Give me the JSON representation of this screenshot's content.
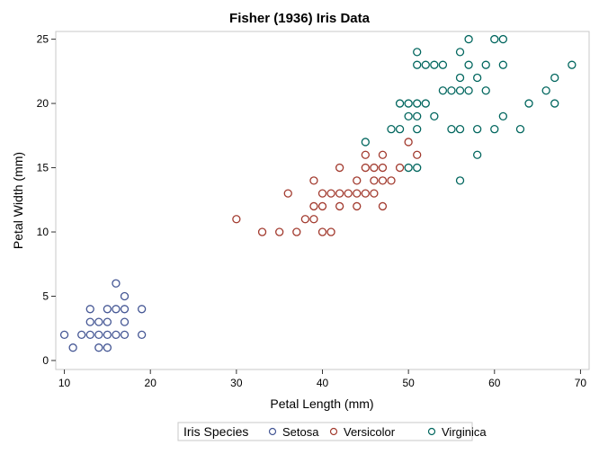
{
  "chart_data": {
    "type": "scatter",
    "title": "Fisher (1936) Iris Data",
    "xlabel": "Petal Length (mm)",
    "ylabel": "Petal Width (mm)",
    "xlim": [
      9,
      71
    ],
    "ylim": [
      -0.7,
      25.6
    ],
    "xticks": [
      10,
      20,
      30,
      40,
      50,
      60,
      70
    ],
    "yticks": [
      0,
      5,
      10,
      15,
      20,
      25
    ],
    "grid": false,
    "legend": {
      "title": "Iris Species",
      "placement": "bottom"
    },
    "series": [
      {
        "name": "Setosa",
        "color": "#445694",
        "points": [
          [
            10,
            2
          ],
          [
            12,
            2
          ],
          [
            13,
            2
          ],
          [
            14,
            2
          ],
          [
            15,
            2
          ],
          [
            16,
            2
          ],
          [
            17,
            2
          ],
          [
            19,
            2
          ],
          [
            11,
            1
          ],
          [
            14,
            1
          ],
          [
            15,
            1
          ],
          [
            13,
            3
          ],
          [
            14,
            3
          ],
          [
            15,
            3
          ],
          [
            17,
            3
          ],
          [
            13,
            4
          ],
          [
            15,
            4
          ],
          [
            16,
            4
          ],
          [
            17,
            4
          ],
          [
            19,
            4
          ],
          [
            17,
            5
          ],
          [
            16,
            6
          ]
        ]
      },
      {
        "name": "Versicolor",
        "color": "#a23a2e",
        "points": [
          [
            33,
            10
          ],
          [
            35,
            10
          ],
          [
            37,
            10
          ],
          [
            40,
            10
          ],
          [
            41,
            10
          ],
          [
            30,
            11
          ],
          [
            38,
            11
          ],
          [
            39,
            11
          ],
          [
            39,
            12
          ],
          [
            40,
            12
          ],
          [
            42,
            12
          ],
          [
            44,
            12
          ],
          [
            47,
            12
          ],
          [
            36,
            13
          ],
          [
            40,
            13
          ],
          [
            41,
            13
          ],
          [
            42,
            13
          ],
          [
            43,
            13
          ],
          [
            44,
            13
          ],
          [
            45,
            13
          ],
          [
            46,
            13
          ],
          [
            39,
            14
          ],
          [
            44,
            14
          ],
          [
            46,
            14
          ],
          [
            47,
            14
          ],
          [
            48,
            14
          ],
          [
            42,
            15
          ],
          [
            45,
            15
          ],
          [
            46,
            15
          ],
          [
            47,
            15
          ],
          [
            49,
            15
          ],
          [
            45,
            16
          ],
          [
            47,
            16
          ],
          [
            51,
            16
          ],
          [
            50,
            17
          ]
        ]
      },
      {
        "name": "Virginica",
        "color": "#01665e",
        "points": [
          [
            57,
            25
          ],
          [
            60,
            25
          ],
          [
            61,
            25
          ],
          [
            51,
            24
          ],
          [
            56,
            24
          ],
          [
            51,
            23
          ],
          [
            52,
            23
          ],
          [
            53,
            23
          ],
          [
            54,
            23
          ],
          [
            57,
            23
          ],
          [
            59,
            23
          ],
          [
            61,
            23
          ],
          [
            69,
            23
          ],
          [
            56,
            22
          ],
          [
            58,
            22
          ],
          [
            67,
            22
          ],
          [
            54,
            21
          ],
          [
            55,
            21
          ],
          [
            56,
            21
          ],
          [
            57,
            21
          ],
          [
            59,
            21
          ],
          [
            66,
            21
          ],
          [
            49,
            20
          ],
          [
            50,
            20
          ],
          [
            51,
            20
          ],
          [
            52,
            20
          ],
          [
            64,
            20
          ],
          [
            67,
            20
          ],
          [
            50,
            19
          ],
          [
            51,
            19
          ],
          [
            53,
            19
          ],
          [
            61,
            19
          ],
          [
            48,
            18
          ],
          [
            49,
            18
          ],
          [
            51,
            18
          ],
          [
            55,
            18
          ],
          [
            56,
            18
          ],
          [
            58,
            18
          ],
          [
            60,
            18
          ],
          [
            63,
            18
          ],
          [
            45,
            17
          ],
          [
            58,
            16
          ],
          [
            50,
            15
          ],
          [
            51,
            15
          ],
          [
            56,
            14
          ]
        ]
      }
    ]
  }
}
